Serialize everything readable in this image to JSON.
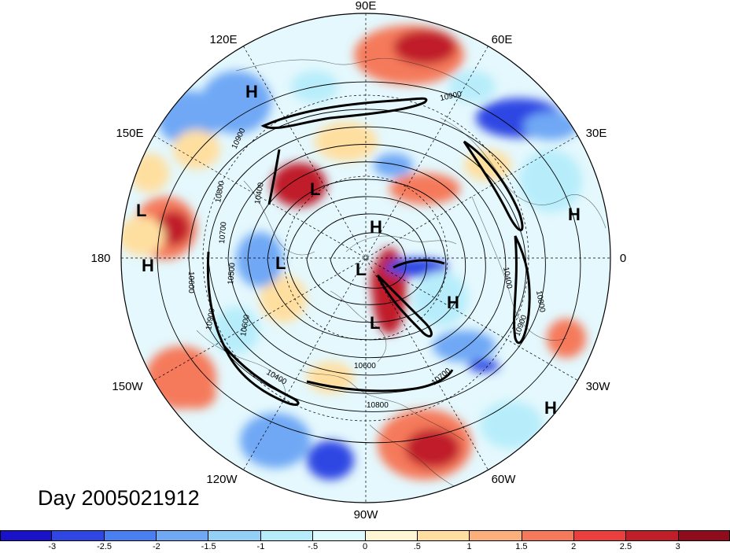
{
  "title": "Day 2005021912",
  "longitude_labels": [
    "90E",
    "60E",
    "30E",
    "0",
    "30W",
    "60W",
    "90W",
    "120W",
    "150W",
    "180",
    "150E",
    "120E"
  ],
  "pressure_centers": [
    {
      "type": "H",
      "label": "H"
    },
    {
      "type": "L",
      "label": "L"
    },
    {
      "type": "L",
      "label": "L"
    },
    {
      "type": "H",
      "label": "H"
    },
    {
      "type": "H",
      "label": "H"
    },
    {
      "type": "L",
      "label": "L"
    },
    {
      "type": "L",
      "label": "L"
    },
    {
      "type": "H",
      "label": "H"
    },
    {
      "type": "L",
      "label": "L"
    },
    {
      "type": "H",
      "label": "H"
    },
    {
      "type": "L",
      "label": "L"
    },
    {
      "type": "H",
      "label": "H"
    }
  ],
  "contour_labels": [
    "10900",
    "10900",
    "10800",
    "10700",
    "10600",
    "10500",
    "10400",
    "10900",
    "10600",
    "10400",
    "10400",
    "10800",
    "10900",
    "10600",
    "10800",
    "10700"
  ],
  "colorbar": {
    "colors": [
      "#1a12c8",
      "#2f46e3",
      "#4a7ff2",
      "#6fa8f5",
      "#92d0f8",
      "#b7edfb",
      "#ddfafd",
      "#fff6d4",
      "#ffdfa0",
      "#fbb07c",
      "#f57a5c",
      "#ea3f3c",
      "#c01f2a",
      "#8f0c1c"
    ],
    "tick_labels": [
      "-3",
      "-2.5",
      "-2",
      "-1.5",
      "-1",
      "-.5",
      "0",
      ".5",
      "1",
      "1.5",
      "2",
      "2.5",
      "3"
    ]
  },
  "anomaly_colors": {
    "strong_negative": "#2f46e3",
    "negative": "#6fa8f5",
    "weak_negative": "#b7edfb",
    "neutral": "#eefcff",
    "weak_positive": "#ffdfa0",
    "positive": "#f57a5c",
    "strong_positive": "#c01f2a"
  }
}
